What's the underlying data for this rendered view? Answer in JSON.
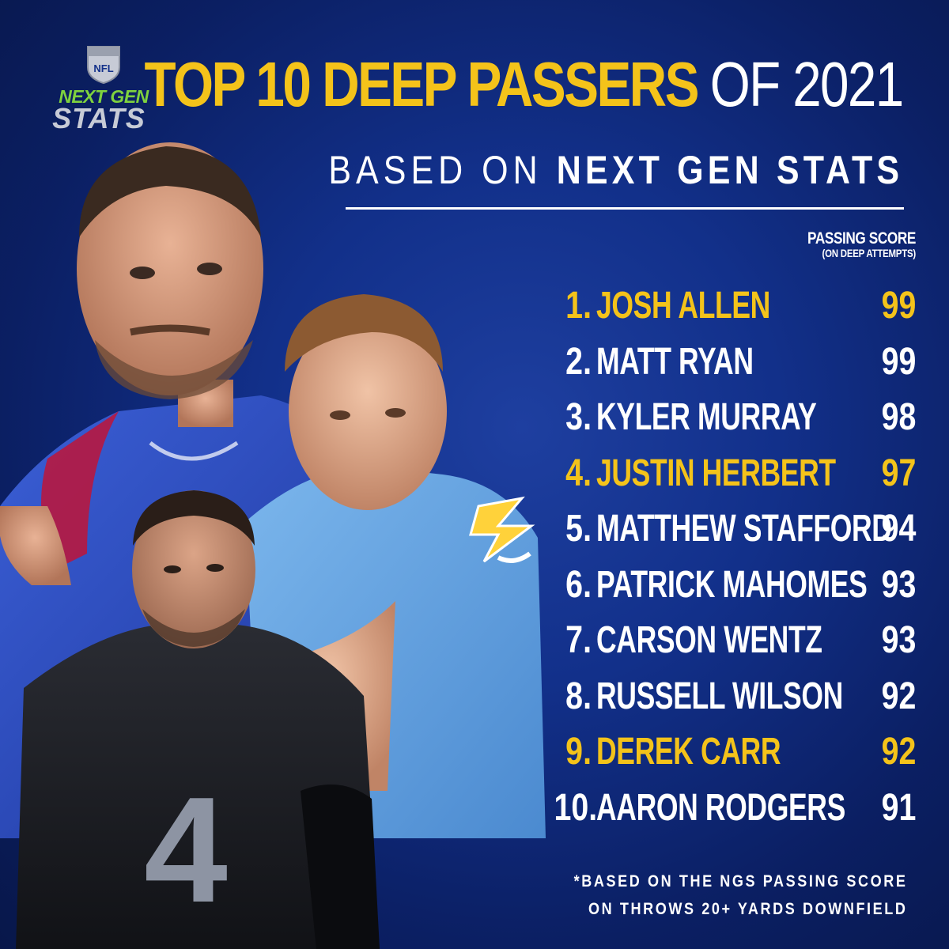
{
  "logo": {
    "shield_text": "NFL",
    "line1": "NEXT GEN",
    "line2": "STATS"
  },
  "title": {
    "main": "TOP 10 DEEP PASSERS",
    "suffix": "OF 2021",
    "sub_light": "BASED ON",
    "sub_bold": "NEXT GEN STATS"
  },
  "column_header": {
    "label": "PASSING SCORE",
    "sublabel": "(ON DEEP ATTEMPTS)"
  },
  "rankings": [
    {
      "rank": "1.",
      "name": "JOSH ALLEN",
      "score": "99",
      "highlight": true
    },
    {
      "rank": "2.",
      "name": "MATT RYAN",
      "score": "99",
      "highlight": false
    },
    {
      "rank": "3.",
      "name": "KYLER MURRAY",
      "score": "98",
      "highlight": false
    },
    {
      "rank": "4.",
      "name": "JUSTIN HERBERT",
      "score": "97",
      "highlight": true
    },
    {
      "rank": "5.",
      "name": "MATTHEW STAFFORD",
      "score": "94",
      "highlight": false
    },
    {
      "rank": "6.",
      "name": "PATRICK MAHOMES",
      "score": "93",
      "highlight": false
    },
    {
      "rank": "7.",
      "name": "CARSON WENTZ",
      "score": "93",
      "highlight": false
    },
    {
      "rank": "8.",
      "name": "RUSSELL WILSON",
      "score": "92",
      "highlight": false
    },
    {
      "rank": "9.",
      "name": "DEREK CARR",
      "score": "92",
      "highlight": true
    },
    {
      "rank": "10.",
      "name": "AARON RODGERS",
      "score": "91",
      "highlight": false
    }
  ],
  "footnote": {
    "line1": "*BASED ON THE NGS PASSING SCORE",
    "line2": "ON THROWS 20+ YARDS DOWNFIELD"
  },
  "jersey_number": "4",
  "colors": {
    "background": "#12308a",
    "highlight": "#f4c31a",
    "text": "#ffffff",
    "logo_green": "#7fd23e"
  }
}
